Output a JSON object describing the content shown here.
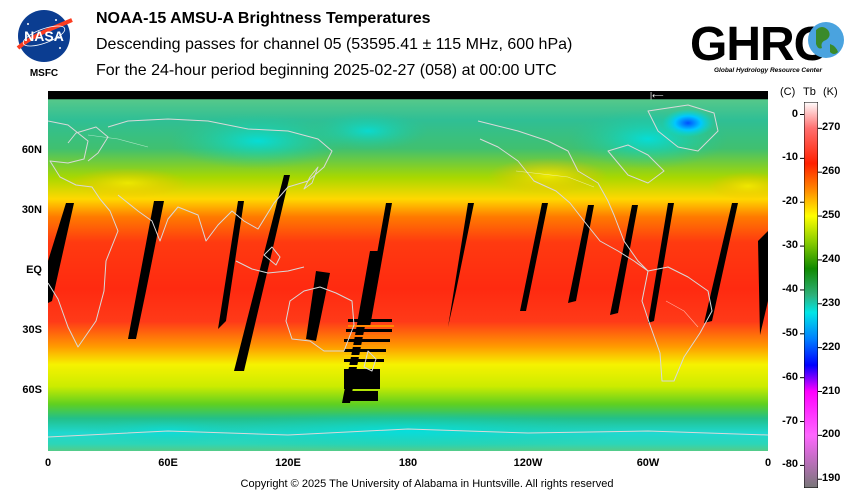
{
  "logos": {
    "nasa_text": "NASA",
    "nasa_sub": "MSFC",
    "ghrc_text": "GHRC",
    "ghrc_sub": "Global Hydrology Resource Center"
  },
  "title": {
    "line1": "NOAA-15 AMSU-A Brightness Temperatures",
    "line2": "Descending passes for channel 05 (53595.41 ± 115 MHz, 600 hPa)",
    "line3": "For the 24-hour period beginning 2025-02-27 (058) at 00:00 UTC"
  },
  "map": {
    "lat_labels": [
      {
        "text": "60N",
        "lat": 60
      },
      {
        "text": "30N",
        "lat": 30
      },
      {
        "text": "EQ",
        "lat": 0
      },
      {
        "text": "30S",
        "lat": -30
      },
      {
        "text": "60S",
        "lat": -60
      }
    ],
    "lon_labels": [
      {
        "text": "0",
        "lon": 0
      },
      {
        "text": "60E",
        "lon": 60
      },
      {
        "text": "120E",
        "lon": 120
      },
      {
        "text": "180",
        "lon": 180
      },
      {
        "text": "120W",
        "lon": 240
      },
      {
        "text": "60W",
        "lon": 300
      },
      {
        "text": "0",
        "lon": 360
      }
    ]
  },
  "colorbar": {
    "header_left": "(C)",
    "header_mid": "Tb",
    "header_right": "(K)",
    "celsius_ticks": [
      "0",
      "-10",
      "-20",
      "-30",
      "-40",
      "-50",
      "-60",
      "-70",
      "-80"
    ],
    "celsius_values": [
      0,
      -10,
      -20,
      -30,
      -40,
      -50,
      -60,
      -70,
      -80
    ],
    "kelvin_ticks": [
      "270",
      "260",
      "250",
      "240",
      "230",
      "220",
      "210",
      "200",
      "190"
    ],
    "kelvin_values": [
      270,
      260,
      250,
      240,
      230,
      220,
      210,
      200,
      190
    ],
    "range_k": [
      188,
      276
    ],
    "colors": {
      "k276": "#ffffff",
      "k270": "#ff6f6f",
      "k262": "#ff2000",
      "k256": "#ff8800",
      "k250": "#ffff00",
      "k244": "#88cc00",
      "k238": "#108a00",
      "k232": "#2eb07a",
      "k228": "#00e6e6",
      "k222": "#0080ff",
      "k216": "#0000ff",
      "k210": "#ff00ff",
      "k200": "#ff66ff",
      "k188": "#777777"
    }
  },
  "footer": {
    "copyright": "Copyright © 2025 The University of Alabama in Huntsville.  All rights reserved"
  }
}
